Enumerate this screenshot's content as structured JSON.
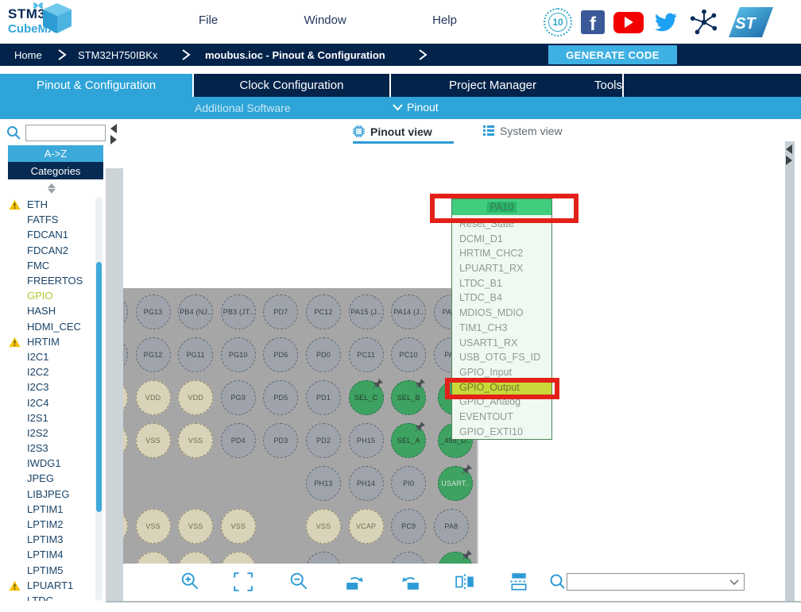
{
  "logo": {
    "line1": "STM32",
    "line2": "CubeMX"
  },
  "menubar": {
    "items": [
      "File",
      "Window",
      "Help"
    ]
  },
  "social_icons": [
    "anniversary-10-years",
    "facebook",
    "youtube",
    "twitter",
    "st-community",
    "st-logo"
  ],
  "anniversary": {
    "number": "10"
  },
  "facebook_letter": "f",
  "breadcrumb": {
    "items": [
      {
        "label": "Home"
      },
      {
        "label": "STM32H750IBKx"
      },
      {
        "label": "moubus.ioc - Pinout & Configuration",
        "cls": "bc-b"
      }
    ]
  },
  "generate_button": {
    "label": "GENERATE CODE"
  },
  "nav_tabs": {
    "items": [
      {
        "label": "Pinout & Configuration",
        "state": "active"
      },
      {
        "label": "Clock Configuration",
        "state": ""
      },
      {
        "label": "Project Manager",
        "state": ""
      },
      {
        "label": "Tools",
        "state": ""
      }
    ]
  },
  "subnav": {
    "additional_software": "Additional Software",
    "pinout": "Pinout"
  },
  "sidebar": {
    "search": {
      "value": "",
      "placeholder": ""
    },
    "sort_az": "A->Z",
    "sort_categories": "Categories",
    "items": [
      {
        "label": "ETH",
        "warn": true
      },
      {
        "label": "FATFS"
      },
      {
        "label": "FDCAN1"
      },
      {
        "label": "FDCAN2"
      },
      {
        "label": "FMC"
      },
      {
        "label": "FREERTOS"
      },
      {
        "label": "GPIO",
        "cls": "hl"
      },
      {
        "label": "HASH"
      },
      {
        "label": "HDMI_CEC"
      },
      {
        "label": "HRTIM",
        "warn": true
      },
      {
        "label": "I2C1"
      },
      {
        "label": "I2C2"
      },
      {
        "label": "I2C3"
      },
      {
        "label": "I2C4"
      },
      {
        "label": "I2S1"
      },
      {
        "label": "I2S2"
      },
      {
        "label": "I2S3"
      },
      {
        "label": "IWDG1"
      },
      {
        "label": "JPEG"
      },
      {
        "label": "LIBJPEG"
      },
      {
        "label": "LPTIM1"
      },
      {
        "label": "LPTIM2"
      },
      {
        "label": "LPTIM3"
      },
      {
        "label": "LPTIM4"
      },
      {
        "label": "LPTIM5"
      },
      {
        "label": "LPUART1",
        "warn": true
      },
      {
        "label": "LTDC"
      }
    ]
  },
  "view_tabs": {
    "pinout_view": "Pinout view",
    "system_view": "System view"
  },
  "popup_menu": {
    "title": "PA10",
    "items": [
      {
        "label": "Reset_State"
      },
      {
        "label": "DCMI_D1"
      },
      {
        "label": "HRTIM_CHC2"
      },
      {
        "label": "LPUART1_RX"
      },
      {
        "label": "LTDC_B1"
      },
      {
        "label": "LTDC_B4"
      },
      {
        "label": "MDIOS_MDIO"
      },
      {
        "label": "TIM1_CH3"
      },
      {
        "label": "USART1_RX"
      },
      {
        "label": "USB_OTG_FS_ID"
      },
      {
        "label": "GPIO_Input"
      },
      {
        "label": "GPIO_Output",
        "state": "selected"
      },
      {
        "label": "GPIO_Analog"
      },
      {
        "label": "EVENTOUT"
      },
      {
        "label": "GPIO_EXTI10"
      }
    ]
  },
  "chip": {
    "pins": [
      {
        "col": 0,
        "row": 0,
        "kind": "io",
        "label": ""
      },
      {
        "col": 1,
        "row": 0,
        "kind": "io",
        "label": "PG13"
      },
      {
        "col": 2,
        "row": 0,
        "kind": "io",
        "label": "PB4 (NJ.."
      },
      {
        "col": 3,
        "row": 0,
        "kind": "io",
        "label": "PB3 (JT.."
      },
      {
        "col": 4,
        "row": 0,
        "kind": "io",
        "label": "PD7"
      },
      {
        "col": 5,
        "row": 0,
        "kind": "io",
        "label": "PC12"
      },
      {
        "col": 6,
        "row": 0,
        "kind": "io",
        "label": "PA15 (J.."
      },
      {
        "col": 7,
        "row": 0,
        "kind": "io",
        "label": "PA14 (J.."
      },
      {
        "col": 8,
        "row": 0,
        "kind": "io",
        "label": "PA1.."
      },
      {
        "col": 0,
        "row": 1,
        "kind": "io",
        "label": ""
      },
      {
        "col": 1,
        "row": 1,
        "kind": "io",
        "label": "PG12"
      },
      {
        "col": 2,
        "row": 1,
        "kind": "io",
        "label": "PG11"
      },
      {
        "col": 3,
        "row": 1,
        "kind": "io",
        "label": "PG10"
      },
      {
        "col": 4,
        "row": 1,
        "kind": "io",
        "label": "PD6"
      },
      {
        "col": 5,
        "row": 1,
        "kind": "io",
        "label": "PD0"
      },
      {
        "col": 6,
        "row": 1,
        "kind": "io",
        "label": "PC11"
      },
      {
        "col": 7,
        "row": 1,
        "kind": "io",
        "label": "PC10"
      },
      {
        "col": 8,
        "row": 1,
        "kind": "io",
        "label": "PA.."
      },
      {
        "col": 0,
        "row": 2,
        "kind": "power",
        "label": ""
      },
      {
        "col": 1,
        "row": 2,
        "kind": "power",
        "label": "VDD"
      },
      {
        "col": 2,
        "row": 2,
        "kind": "power",
        "label": "VDD"
      },
      {
        "col": 3,
        "row": 2,
        "kind": "io",
        "label": "PG9"
      },
      {
        "col": 4,
        "row": 2,
        "kind": "io",
        "label": "PD5"
      },
      {
        "col": 5,
        "row": 2,
        "kind": "io",
        "label": "PD1"
      },
      {
        "col": 6,
        "row": 2,
        "kind": "signal",
        "label": "SEL_C",
        "pinned": true
      },
      {
        "col": 7,
        "row": 2,
        "kind": "signal",
        "label": "SEL_B",
        "pinned": true
      },
      {
        "col": 8.1,
        "row": 2,
        "kind": "signal",
        "label": "",
        "pinned": true
      },
      {
        "col": 0,
        "row": 3,
        "kind": "power",
        "label": ""
      },
      {
        "col": 1,
        "row": 3,
        "kind": "power",
        "label": "VSS"
      },
      {
        "col": 2,
        "row": 3,
        "kind": "power",
        "label": "VSS"
      },
      {
        "col": 3,
        "row": 3,
        "kind": "io",
        "label": "PD4"
      },
      {
        "col": 4,
        "row": 3,
        "kind": "io",
        "label": "PD3"
      },
      {
        "col": 5,
        "row": 3,
        "kind": "io",
        "label": "PD2"
      },
      {
        "col": 6,
        "row": 3,
        "kind": "io",
        "label": "PH15"
      },
      {
        "col": 7,
        "row": 3,
        "kind": "signal",
        "label": "SEL_A",
        "pinned": true
      },
      {
        "col": 8.1,
        "row": 3,
        "kind": "signal",
        "label": "_485_D..",
        "pinned": true
      },
      {
        "col": 5,
        "row": 4,
        "kind": "io",
        "label": "PH13"
      },
      {
        "col": 6,
        "row": 4,
        "kind": "io",
        "label": "PH14"
      },
      {
        "col": 7,
        "row": 4,
        "kind": "io",
        "label": "PI0"
      },
      {
        "col": 8.1,
        "row": 4,
        "kind": "signal",
        "label": "USART..",
        "pinned": true,
        "lcls": "lt"
      },
      {
        "col": 0,
        "row": 5,
        "kind": "power",
        "label": ""
      },
      {
        "col": 1,
        "row": 5,
        "kind": "power",
        "label": "VSS"
      },
      {
        "col": 2,
        "row": 5,
        "kind": "power",
        "label": "VSS"
      },
      {
        "col": 3,
        "row": 5,
        "kind": "power",
        "label": "VSS"
      },
      {
        "col": 5,
        "row": 5,
        "kind": "power",
        "label": "VSS"
      },
      {
        "col": 6,
        "row": 5,
        "kind": "power",
        "label": "VCAP"
      },
      {
        "col": 7,
        "row": 5,
        "kind": "io",
        "label": "PC9"
      },
      {
        "col": 8,
        "row": 5,
        "kind": "io",
        "label": "PA8"
      },
      {
        "col": 1,
        "row": 6,
        "kind": "power",
        "label": ""
      },
      {
        "col": 2,
        "row": 6,
        "kind": "power",
        "label": ""
      },
      {
        "col": 3,
        "row": 6,
        "kind": "power",
        "label": ""
      },
      {
        "col": 5,
        "row": 6,
        "kind": "io",
        "label": ""
      },
      {
        "col": 7,
        "row": 6,
        "kind": "io",
        "label": ""
      },
      {
        "col": 8.1,
        "row": 6,
        "kind": "signal",
        "label": "",
        "pinned": true
      }
    ]
  },
  "bottom_toolbar": {
    "icons": [
      "zoom-in",
      "fit-to-screen",
      "zoom-out",
      "rotate-clockwise",
      "rotate-counterclockwise",
      "flip-horizontal",
      "flip-vertical"
    ],
    "search": {
      "value": ""
    }
  },
  "colors": {
    "navy": "#03234B",
    "light_blue": "#2EA4D8",
    "button_blue": "#3EB0E3",
    "pin_green": "#3EA263",
    "power_tan": "#D9D3B9",
    "pin_gray": "#9FA4AC",
    "header_green": "#41CC7E",
    "selected_yellow": "#C9D838",
    "annotation_red": "#E32119",
    "gpio_highlight": "#B5C733",
    "warning_yellow": "#F5C400",
    "toolbar_icon_blue": "#2E9BD6"
  }
}
